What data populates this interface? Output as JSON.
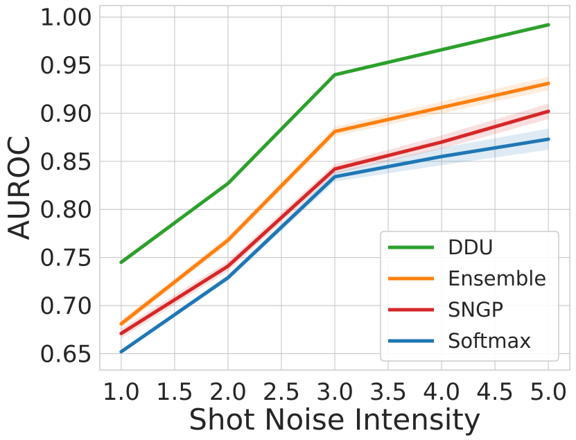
{
  "chart_data": {
    "type": "line",
    "xlabel": "Shot Noise Intensity",
    "ylabel": "AUROC",
    "x": [
      1.0,
      2.0,
      3.0,
      4.0,
      5.0
    ],
    "xlim": [
      0.8,
      5.2
    ],
    "ylim": [
      0.633,
      1.012
    ],
    "xticks": [
      1.0,
      1.5,
      2.0,
      2.5,
      3.0,
      3.5,
      4.0,
      4.5,
      5.0
    ],
    "xtick_labels": [
      "1.0",
      "1.5",
      "2.0",
      "2.5",
      "3.0",
      "3.5",
      "4.0",
      "4.5",
      "5.0"
    ],
    "yticks": [
      0.65,
      0.7,
      0.75,
      0.8,
      0.85,
      0.9,
      0.95,
      1.0
    ],
    "ytick_labels": [
      "0.65",
      "0.70",
      "0.75",
      "0.80",
      "0.85",
      "0.90",
      "0.95",
      "1.00"
    ],
    "grid": true,
    "legend_position": "lower-right",
    "series": [
      {
        "name": "DDU",
        "color": "#2ca02c",
        "values": [
          0.745,
          0.827,
          0.94,
          0.966,
          0.992
        ],
        "band": [
          0.001,
          0.001,
          0.001,
          0.001,
          0.001
        ]
      },
      {
        "name": "Ensemble",
        "color": "#ff7f0e",
        "values": [
          0.681,
          0.768,
          0.881,
          0.906,
          0.931
        ],
        "band": [
          0.004,
          0.004,
          0.005,
          0.006,
          0.007
        ]
      },
      {
        "name": "SNGP",
        "color": "#d62728",
        "values": [
          0.671,
          0.741,
          0.842,
          0.87,
          0.902
        ],
        "band": [
          0.005,
          0.005,
          0.005,
          0.007,
          0.008
        ]
      },
      {
        "name": "Softmax",
        "color": "#1f77b4",
        "values": [
          0.652,
          0.729,
          0.834,
          0.855,
          0.873
        ],
        "band": [
          0.002,
          0.003,
          0.005,
          0.009,
          0.011
        ]
      }
    ]
  }
}
